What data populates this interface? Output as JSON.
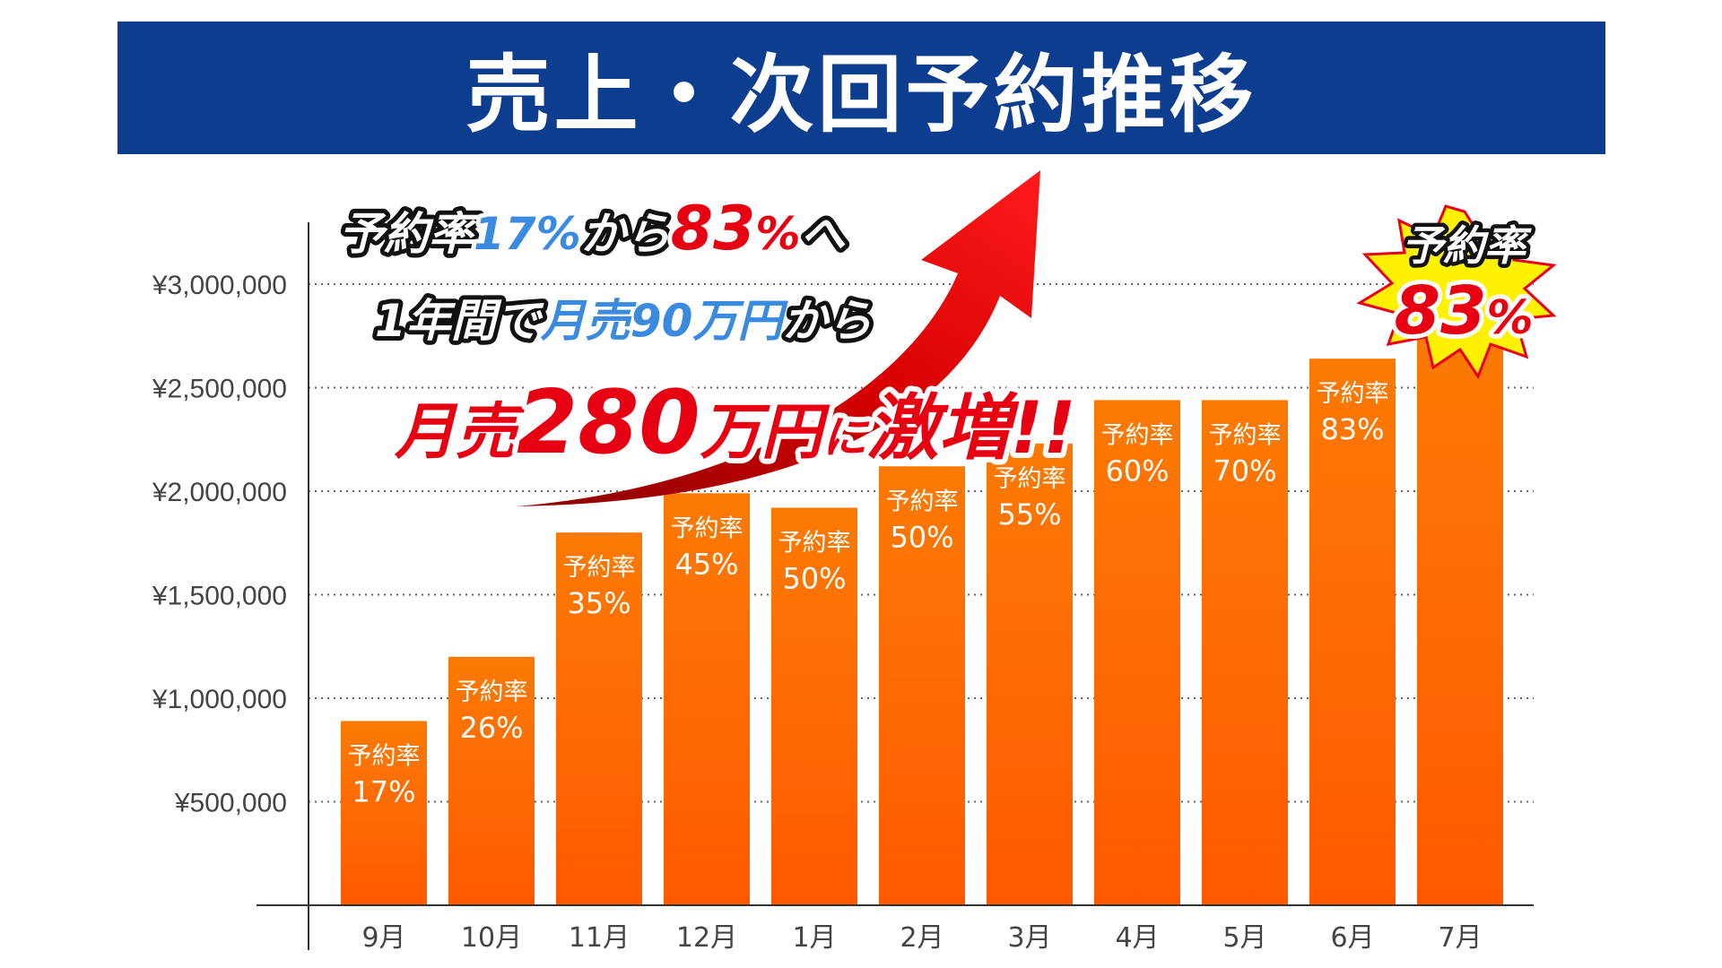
{
  "title": "売上・次回予約推移",
  "chart_data": {
    "type": "bar",
    "categories": [
      "9月",
      "10月",
      "11月",
      "12月",
      "1月",
      "2月",
      "3月",
      "4月",
      "5月",
      "6月",
      "7月"
    ],
    "values": [
      890000,
      1200000,
      1800000,
      1990000,
      1920000,
      2120000,
      2230000,
      2440000,
      2440000,
      2640000,
      2800000
    ],
    "series": [
      {
        "values": [
          890000,
          1200000,
          1800000,
          1990000,
          1920000,
          2120000,
          2230000,
          2440000,
          2440000,
          2640000,
          2800000
        ]
      }
    ],
    "bar_label": "予約率",
    "reservation_rates": [
      "17%",
      "26%",
      "35%",
      "45%",
      "50%",
      "50%",
      "55%",
      "60%",
      "70%",
      "83%",
      ""
    ],
    "ytick_labels": [
      "¥500,000",
      "¥1,000,000",
      "¥1,500,000",
      "¥2,000,000",
      "¥2,500,000",
      "¥3,000,000"
    ],
    "ytick_values": [
      500000,
      1000000,
      1500000,
      2000000,
      2500000,
      3000000
    ],
    "ylim": [
      0,
      3300000
    ],
    "grid": true,
    "xlabel": "",
    "ylabel": "",
    "bar_color_top": "#fb7a05",
    "bar_color_bottom": "#ff5a00"
  },
  "callout": {
    "line1_a": "予約率",
    "line1_b": "17%",
    "line1_c": "から",
    "line1_d": "83",
    "line1_e": "%",
    "line1_f": "へ",
    "line2_a": "1年間で",
    "line2_b": "月売90万円",
    "line2_c": "から",
    "line3_a": "月売",
    "line3_b": "280",
    "line3_c": "万円",
    "line3_d": "に",
    "line3_e": "激増!!"
  },
  "burst": {
    "label": "予約率",
    "value": "83",
    "unit": "%"
  }
}
